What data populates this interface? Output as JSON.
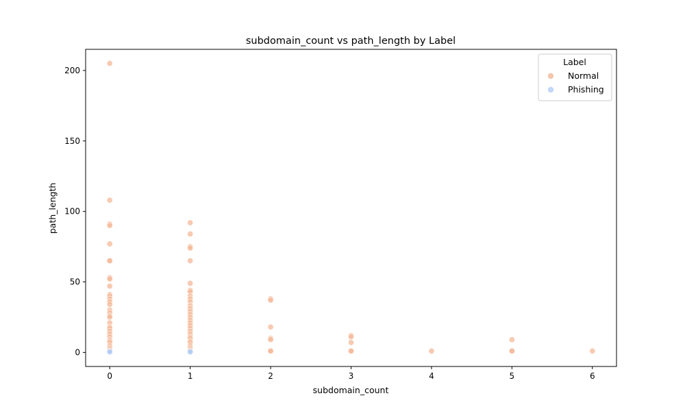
{
  "chart_data": {
    "type": "scatter",
    "title": "subdomain_count vs path_length by Label",
    "xlabel": "subdomain_count",
    "ylabel": "path_length",
    "xlim": [
      -0.3,
      6.3
    ],
    "ylim": [
      -10,
      215
    ],
    "xticks": [
      0,
      1,
      2,
      3,
      4,
      5,
      6
    ],
    "yticks": [
      0,
      50,
      100,
      150,
      200
    ],
    "grid": false,
    "legend": {
      "title": "Label",
      "placement": "top-right"
    },
    "series": [
      {
        "name": "Normal",
        "color": "#f4b898",
        "points": [
          [
            0,
            205
          ],
          [
            0,
            108
          ],
          [
            0,
            91
          ],
          [
            0,
            90
          ],
          [
            0,
            77
          ],
          [
            0,
            65
          ],
          [
            0,
            65
          ],
          [
            0,
            53
          ],
          [
            0,
            52
          ],
          [
            0,
            47
          ],
          [
            0,
            41
          ],
          [
            0,
            40
          ],
          [
            0,
            38
          ],
          [
            0,
            36
          ],
          [
            0,
            34
          ],
          [
            0,
            30
          ],
          [
            0,
            28
          ],
          [
            0,
            26
          ],
          [
            0,
            25
          ],
          [
            0,
            21
          ],
          [
            0,
            18
          ],
          [
            0,
            17
          ],
          [
            0,
            15
          ],
          [
            0,
            13
          ],
          [
            0,
            11
          ],
          [
            0,
            9
          ],
          [
            0,
            8
          ],
          [
            0,
            7
          ],
          [
            0,
            5
          ],
          [
            0,
            4
          ],
          [
            0,
            3
          ],
          [
            0,
            2
          ],
          [
            0,
            1
          ],
          [
            1,
            92
          ],
          [
            1,
            84
          ],
          [
            1,
            75
          ],
          [
            1,
            74
          ],
          [
            1,
            65
          ],
          [
            1,
            49
          ],
          [
            1,
            44
          ],
          [
            1,
            43
          ],
          [
            1,
            40
          ],
          [
            1,
            38
          ],
          [
            1,
            36
          ],
          [
            1,
            33
          ],
          [
            1,
            31
          ],
          [
            1,
            29
          ],
          [
            1,
            27
          ],
          [
            1,
            25
          ],
          [
            1,
            23
          ],
          [
            1,
            21
          ],
          [
            1,
            19
          ],
          [
            1,
            17
          ],
          [
            1,
            15
          ],
          [
            1,
            13
          ],
          [
            1,
            11
          ],
          [
            1,
            10
          ],
          [
            1,
            8
          ],
          [
            1,
            7
          ],
          [
            1,
            5
          ],
          [
            1,
            4
          ],
          [
            1,
            3
          ],
          [
            1,
            2
          ],
          [
            1,
            1
          ],
          [
            2,
            38
          ],
          [
            2,
            37
          ],
          [
            2,
            18
          ],
          [
            2,
            10
          ],
          [
            2,
            9
          ],
          [
            2,
            1
          ],
          [
            2,
            1
          ],
          [
            3,
            12
          ],
          [
            3,
            11
          ],
          [
            3,
            7
          ],
          [
            3,
            1
          ],
          [
            3,
            1
          ],
          [
            4,
            1
          ],
          [
            5,
            9
          ],
          [
            5,
            1
          ],
          [
            5,
            1
          ],
          [
            6,
            1
          ]
        ]
      },
      {
        "name": "Phishing",
        "color": "#b3cdf7",
        "points": [
          [
            0,
            0
          ],
          [
            0,
            0.5
          ],
          [
            1,
            0
          ],
          [
            1,
            0.5
          ]
        ]
      }
    ]
  }
}
